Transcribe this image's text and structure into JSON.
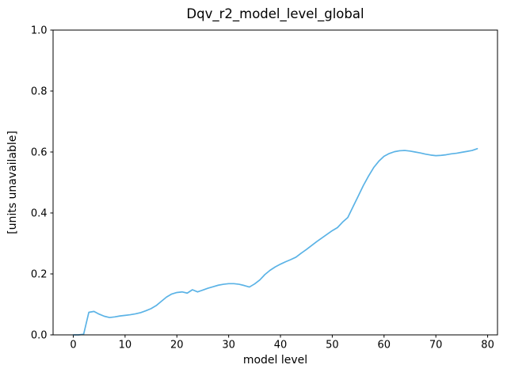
{
  "chart_data": {
    "type": "line",
    "title": "Dqv_r2_model_level_global",
    "xlabel": "model level",
    "ylabel": "[units unavailable]",
    "x": [
      0,
      1,
      2,
      3,
      4,
      5,
      6,
      7,
      8,
      9,
      10,
      11,
      12,
      13,
      14,
      15,
      16,
      17,
      18,
      19,
      20,
      21,
      22,
      23,
      24,
      25,
      26,
      27,
      28,
      29,
      30,
      31,
      32,
      33,
      34,
      35,
      36,
      37,
      38,
      39,
      40,
      41,
      42,
      43,
      44,
      45,
      46,
      47,
      48,
      49,
      50,
      51,
      52,
      53,
      54,
      55,
      56,
      57,
      58,
      59,
      60,
      61,
      62,
      63,
      64,
      65,
      66,
      67,
      68,
      69,
      70,
      71,
      72,
      73,
      74,
      75,
      76,
      77,
      78
    ],
    "series": [
      {
        "values": [
          0.0,
          0.0,
          0.002,
          0.074,
          0.077,
          0.068,
          0.061,
          0.057,
          0.059,
          0.062,
          0.064,
          0.066,
          0.069,
          0.073,
          0.079,
          0.086,
          0.096,
          0.11,
          0.124,
          0.134,
          0.139,
          0.141,
          0.137,
          0.148,
          0.141,
          0.147,
          0.153,
          0.158,
          0.163,
          0.166,
          0.168,
          0.168,
          0.166,
          0.162,
          0.157,
          0.167,
          0.18,
          0.198,
          0.212,
          0.223,
          0.232,
          0.24,
          0.247,
          0.255,
          0.268,
          0.28,
          0.293,
          0.306,
          0.318,
          0.33,
          0.342,
          0.352,
          0.37,
          0.385,
          0.42,
          0.455,
          0.49,
          0.521,
          0.549,
          0.57,
          0.586,
          0.595,
          0.601,
          0.604,
          0.605,
          0.603,
          0.6,
          0.597,
          0.593,
          0.59,
          0.588,
          0.589,
          0.591,
          0.594,
          0.596,
          0.599,
          0.602,
          0.605,
          0.611
        ],
        "color": "#5BB3E6",
        "line_width": 1.7
      }
    ],
    "xlim": [
      -3.9,
      81.9
    ],
    "ylim": [
      0.0,
      1.0
    ],
    "x_ticks": [
      0,
      10,
      20,
      30,
      40,
      50,
      60,
      70,
      80
    ],
    "x_tick_labels": [
      "0",
      "10",
      "20",
      "30",
      "40",
      "50",
      "60",
      "70",
      "80"
    ],
    "y_ticks": [
      0.0,
      0.2,
      0.4,
      0.6,
      0.8,
      1.0
    ],
    "y_tick_labels": [
      "0.0",
      "0.2",
      "0.4",
      "0.6",
      "0.8",
      "1.0"
    ],
    "grid": false,
    "legend": false,
    "background_color": "#ffffff",
    "axis_color": "#000000"
  }
}
